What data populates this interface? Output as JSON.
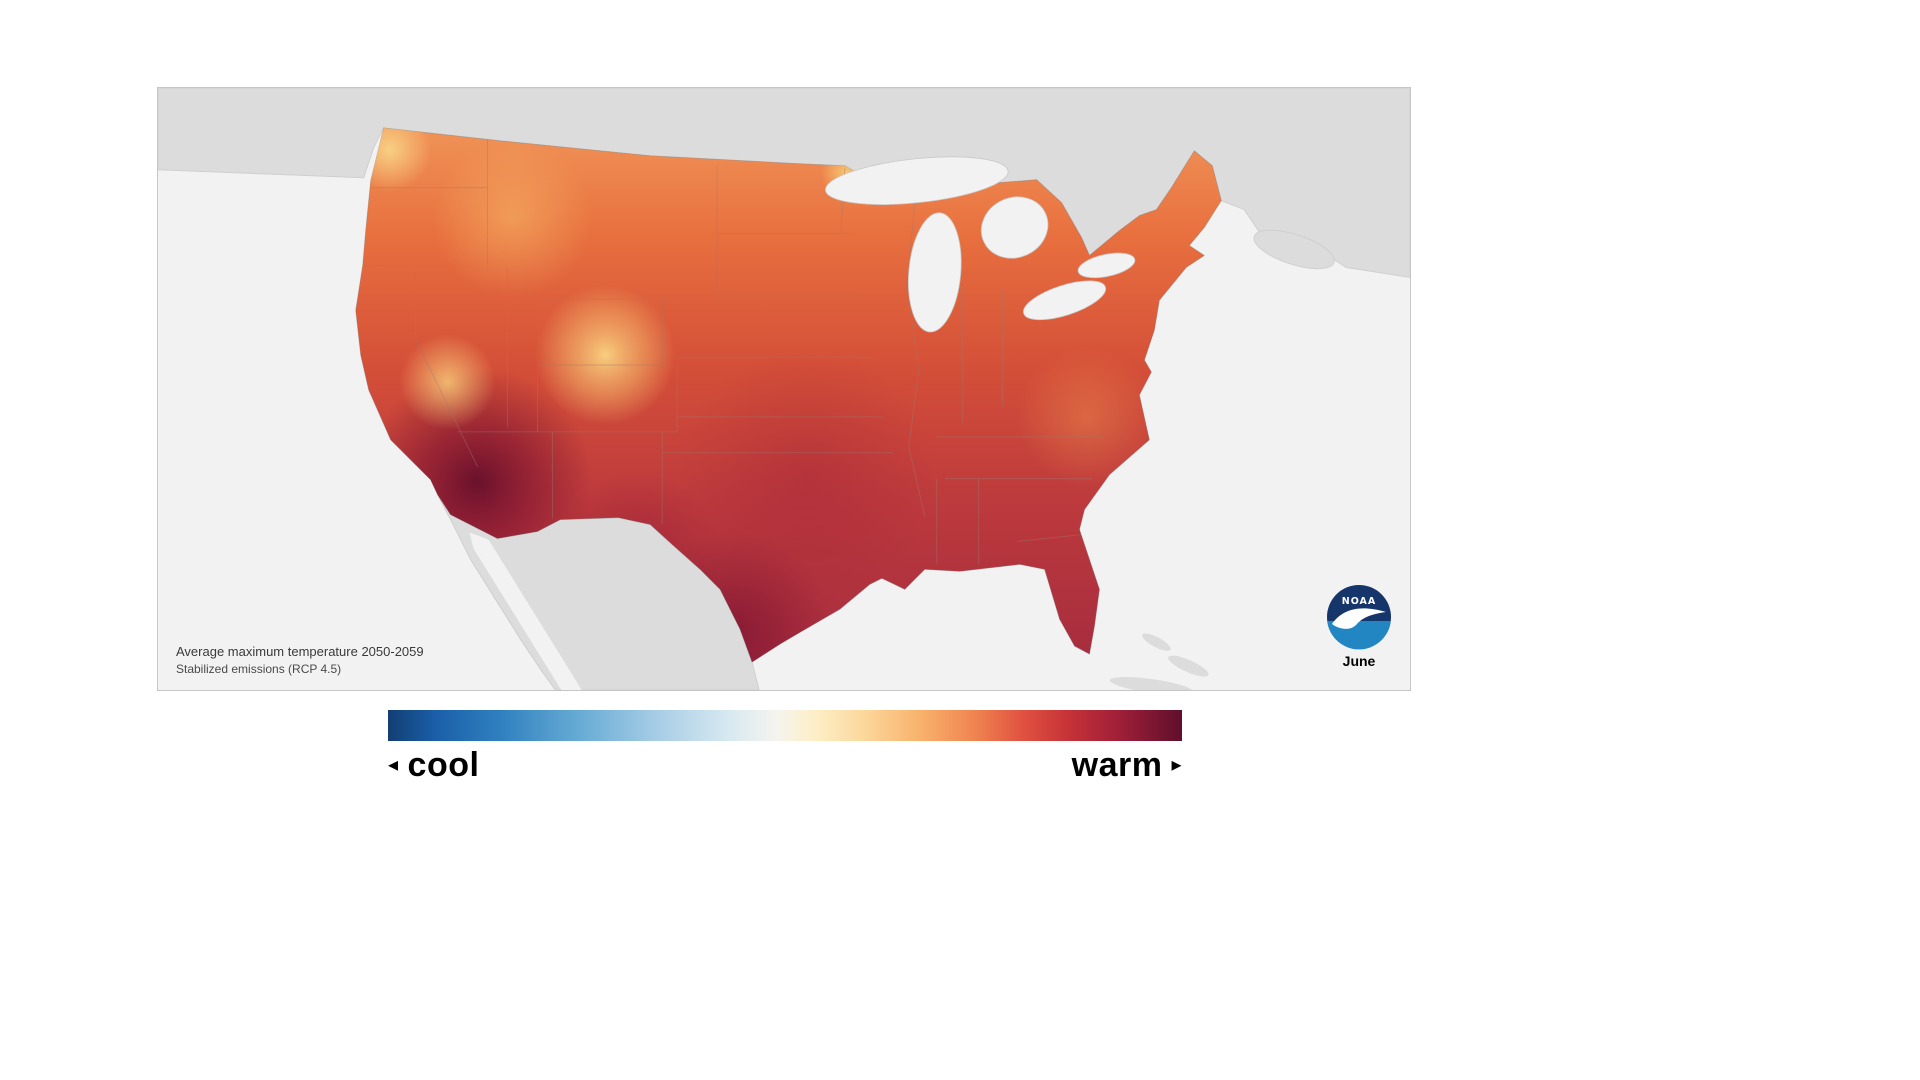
{
  "map_panel": {
    "background": "#f2f2f2",
    "border_color": "#c6c6c6",
    "neighbor_land_color": "#dcdcdc",
    "state_border_color": "#9c7a72",
    "caption_line1": "Average maximum temperature 2050-2059",
    "caption_line2": "Stabilized emissions (RCP 4.5)",
    "month_label": "June",
    "noaa_logo": {
      "text": "NOAA",
      "navy": "#16356b",
      "light_blue": "#2286c3",
      "bird": "#ffffff"
    },
    "us_gradient": [
      {
        "o": "0%",
        "c": "#f09357"
      },
      {
        "o": "20%",
        "c": "#e8703f"
      },
      {
        "o": "45%",
        "c": "#d44f38"
      },
      {
        "o": "70%",
        "c": "#bd3a3d"
      },
      {
        "o": "100%",
        "c": "#a62c3e"
      }
    ]
  },
  "colorbar": {
    "stops": [
      {
        "o": "0%",
        "c": "#123e73"
      },
      {
        "o": "6%",
        "c": "#1a5fa8"
      },
      {
        "o": "14%",
        "c": "#2f7fbf"
      },
      {
        "o": "24%",
        "c": "#66abd4"
      },
      {
        "o": "34%",
        "c": "#a8cde6"
      },
      {
        "o": "43%",
        "c": "#d8e9f1"
      },
      {
        "o": "49%",
        "c": "#f5f4ee"
      },
      {
        "o": "54%",
        "c": "#fdeec6"
      },
      {
        "o": "60%",
        "c": "#fcd79b"
      },
      {
        "o": "67%",
        "c": "#f8b26c"
      },
      {
        "o": "74%",
        "c": "#ef8350"
      },
      {
        "o": "80%",
        "c": "#e05140"
      },
      {
        "o": "86%",
        "c": "#c43137"
      },
      {
        "o": "92%",
        "c": "#a01f38"
      },
      {
        "o": "100%",
        "c": "#5f0f2c"
      }
    ]
  },
  "legend": {
    "cool_label": "cool",
    "warm_label": "warm",
    "left_arrow": "◂",
    "right_arrow": "▸"
  },
  "chart_data": {
    "type": "heatmap",
    "title": "Average maximum temperature 2050-2059",
    "subtitle": "Stabilized emissions (RCP 4.5)",
    "month": "June",
    "region": "Contiguous United States",
    "scale": {
      "left_label": "cool",
      "right_label": "warm",
      "numeric_ticks": "none shown"
    },
    "pattern": "Warmest (dark maroon) over the Desert Southwest, southern California interior and southern Texas; deep red across the South and Florida; orange across the northern tier and New England; lighter yellow-orange over the Pacific Northwest coast, Sierra Nevada and Rocky Mountain high elevations"
  }
}
